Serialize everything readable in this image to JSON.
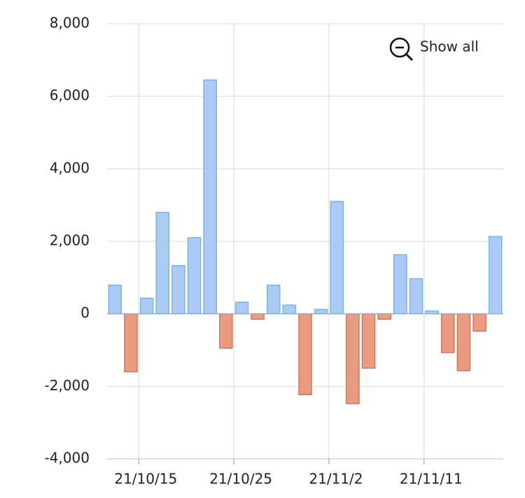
{
  "chart_data": {
    "type": "bar",
    "categories": [
      null,
      null,
      "21/10/15",
      null,
      null,
      null,
      null,
      null,
      "21/10/25",
      null,
      null,
      null,
      null,
      null,
      "21/11/2",
      null,
      null,
      null,
      null,
      null,
      "21/11/11",
      null,
      null,
      null,
      null
    ],
    "values": [
      790,
      -1600,
      430,
      2800,
      1330,
      2100,
      6450,
      -950,
      320,
      -150,
      790,
      240,
      -2230,
      120,
      3100,
      -2480,
      -1500,
      -150,
      1630,
      970,
      80,
      -1070,
      -1570,
      -480,
      2130
    ],
    "positive_color": "#a9cbf6",
    "negative_color": "#eb9b80",
    "ylim": [
      -4000,
      8000
    ],
    "yticks": [
      {
        "value": -4000,
        "label": "-4,000"
      },
      {
        "value": -2000,
        "label": "-2,000"
      },
      0,
      {
        "value": 2000,
        "label": "2,000"
      },
      {
        "value": 4000,
        "label": "4,000"
      },
      {
        "value": 6000,
        "label": "6,000"
      },
      {
        "value": 8000,
        "label": "8,000"
      }
    ],
    "grid": true,
    "show_all_button": "Show all"
  }
}
